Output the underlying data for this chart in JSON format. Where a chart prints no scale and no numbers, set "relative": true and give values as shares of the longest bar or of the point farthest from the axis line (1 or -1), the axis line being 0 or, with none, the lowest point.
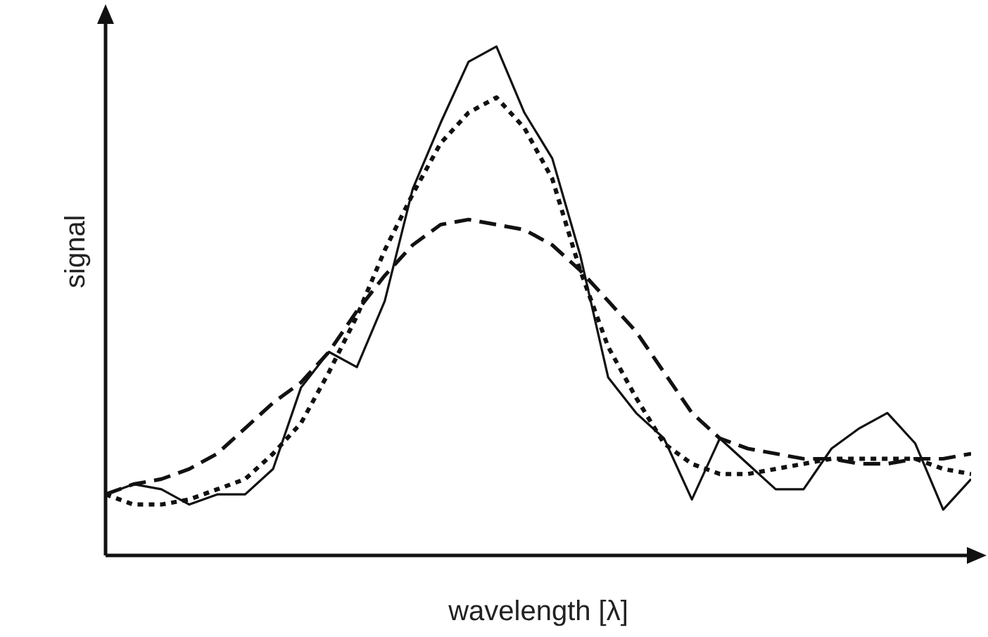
{
  "chart_data": {
    "type": "line",
    "relative": true,
    "xlabel": "wavelength [λ]",
    "ylabel": "signal",
    "legend": false,
    "grid": false,
    "marker": "none",
    "categories": [
      null,
      null,
      null,
      null,
      null,
      null,
      null,
      null,
      null,
      null,
      null,
      null,
      null,
      null,
      null,
      null,
      null,
      null,
      null,
      null,
      null,
      null,
      null,
      null,
      null,
      null,
      null,
      null,
      null,
      null,
      null,
      null
    ],
    "series": [
      {
        "color": "#111111",
        "line_style": "solid",
        "values": [
          0.12,
          0.14,
          0.13,
          0.1,
          0.12,
          0.12,
          0.17,
          0.33,
          0.4,
          0.37,
          0.5,
          0.72,
          0.85,
          0.97,
          1,
          0.87,
          0.78,
          0.59,
          0.35,
          0.28,
          0.23,
          0.11,
          0.23,
          0.18,
          0.13,
          0.13,
          0.21,
          0.25,
          0.28,
          0.22,
          0.09,
          0.15
        ]
      },
      {
        "color": "#111111",
        "line_style": "dotted",
        "values": [
          0.12,
          0.1,
          0.1,
          0.11,
          0.13,
          0.15,
          0.2,
          0.26,
          0.36,
          0.47,
          0.6,
          0.71,
          0.81,
          0.87,
          0.9,
          0.84,
          0.74,
          0.56,
          0.41,
          0.31,
          0.22,
          0.18,
          0.16,
          0.16,
          0.17,
          0.18,
          0.19,
          0.19,
          0.19,
          0.19,
          0.17,
          0.16
        ]
      },
      {
        "color": "#111111",
        "line_style": "dashed",
        "values": [
          0.12,
          0.14,
          0.15,
          0.17,
          0.2,
          0.25,
          0.3,
          0.34,
          0.4,
          0.48,
          0.55,
          0.61,
          0.65,
          0.66,
          0.65,
          0.64,
          0.61,
          0.56,
          0.5,
          0.44,
          0.36,
          0.28,
          0.23,
          0.21,
          0.2,
          0.19,
          0.19,
          0.18,
          0.18,
          0.19,
          0.19,
          0.2
        ]
      }
    ]
  }
}
